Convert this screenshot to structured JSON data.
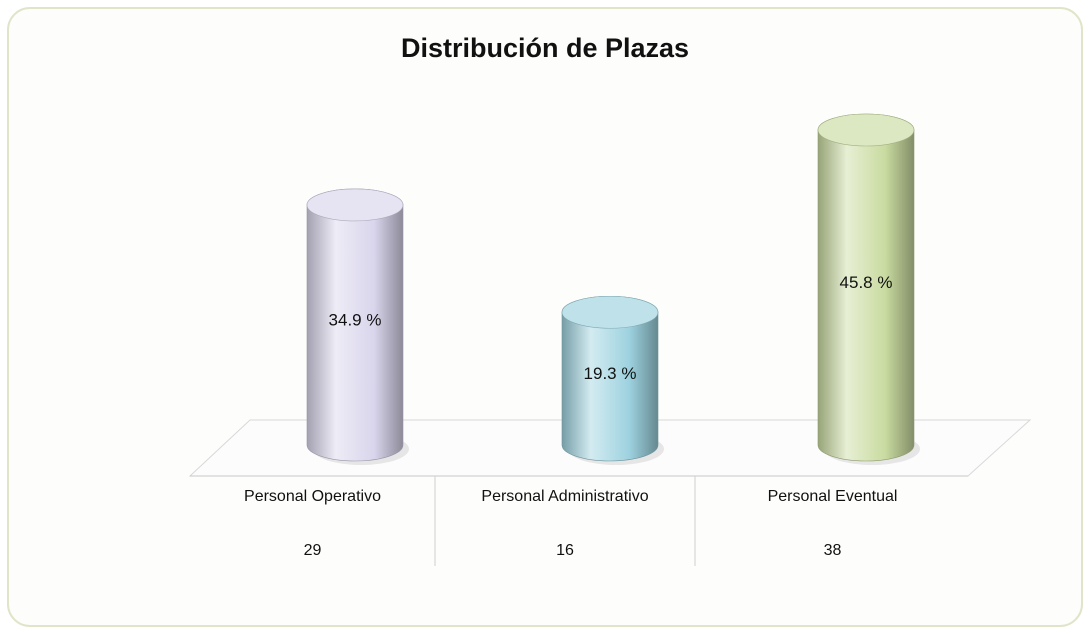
{
  "chart_data": {
    "type": "bar3d",
    "title": "Distribución de Plazas",
    "categories": [
      "Personal Operativo",
      "Personal Administrativo",
      "Personal Eventual"
    ],
    "values": [
      34.9,
      19.3,
      45.8
    ],
    "value_labels": [
      "34.9 %",
      "19.3 %",
      "45.8 %"
    ],
    "colors": [
      "#d9d5ec",
      "#9dd2df",
      "#c9dba0"
    ],
    "counts": [
      29,
      16,
      38
    ]
  }
}
